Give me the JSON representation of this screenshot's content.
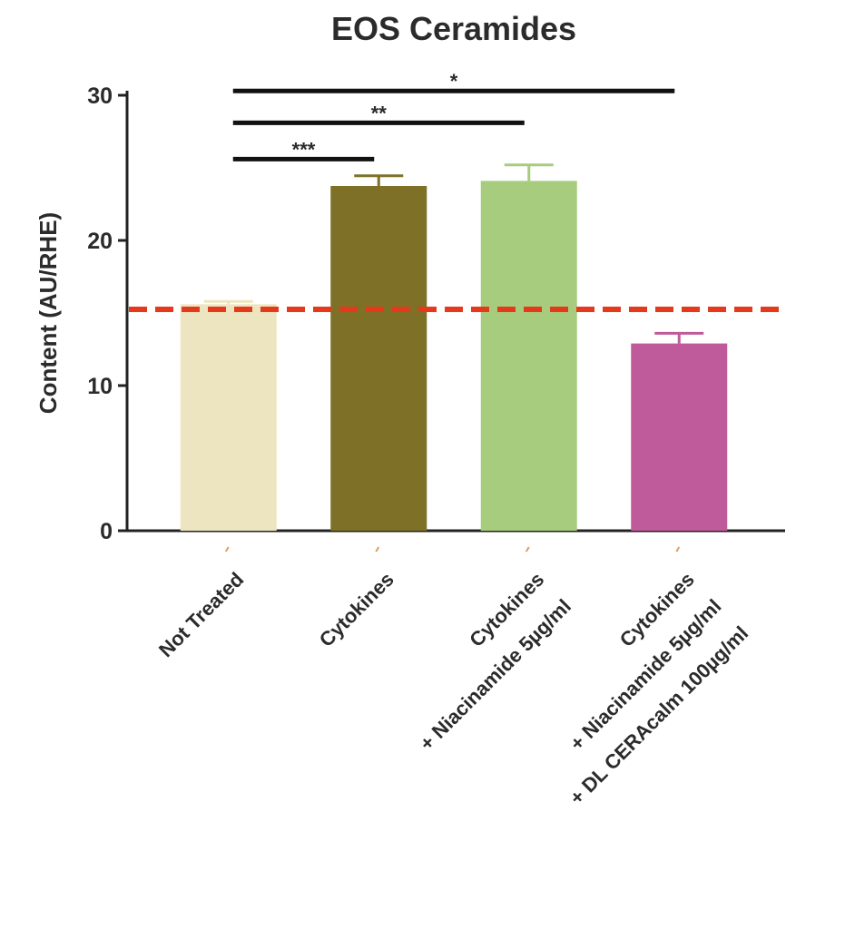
{
  "chart_data": {
    "type": "bar",
    "title": "EOS Ceramides",
    "y_label": "Content (AU/RHE)",
    "categories": [
      [
        "Not Treated"
      ],
      [
        "Cytokines"
      ],
      [
        "Cytokines",
        "+ Niacinamide 5µg/ml"
      ],
      [
        "Cytokines",
        "+ Niacinamide 5µg/ml",
        "+ DL CERAcalm 100µg/ml"
      ]
    ],
    "values": [
      15.6,
      23.75,
      24.1,
      12.9
    ],
    "errors": [
      0.2,
      0.7,
      1.1,
      0.7
    ],
    "colors": [
      "#ede5c0",
      "#7f7028",
      "#a8cc7e",
      "#bf5b9b"
    ],
    "ylim": [
      0,
      30
    ],
    "yticks": [
      0,
      10,
      20,
      30
    ],
    "reference_line": {
      "value": 15.25,
      "color": "#e5391c"
    },
    "significance": [
      {
        "label": "***",
        "from": 0,
        "to": 1,
        "y": 25.6
      },
      {
        "label": "**",
        "from": 0,
        "to": 2,
        "y": 28.1
      },
      {
        "label": "*",
        "from": 0,
        "to": 3,
        "y": 30.3
      }
    ]
  }
}
